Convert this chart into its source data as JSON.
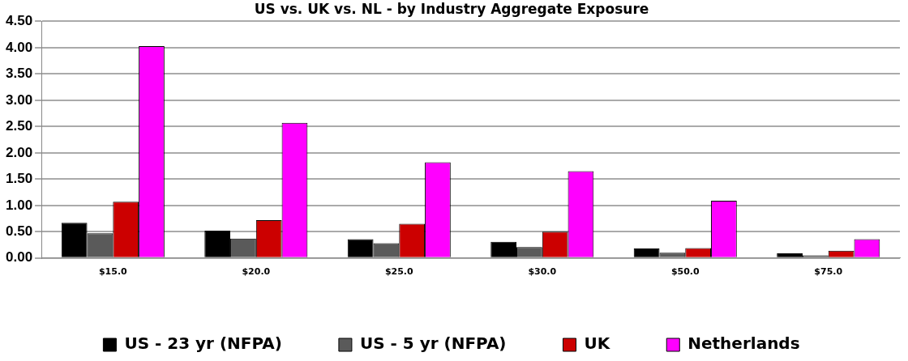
{
  "chart_data": {
    "type": "bar",
    "title": "US vs. UK vs. NL - by Industry Aggregate Exposure",
    "categories": [
      "$15.0",
      "$20.0",
      "$25.0",
      "$30.0",
      "$50.0",
      "$75.0"
    ],
    "series": [
      {
        "name": "US - 23 yr (NFPA)",
        "color": "#000000",
        "values": [
          0.67,
          0.52,
          0.36,
          0.31,
          0.18,
          0.09
        ]
      },
      {
        "name": "US - 5 yr (NFPA)",
        "color": "#5a5a5a",
        "values": [
          0.47,
          0.37,
          0.28,
          0.21,
          0.1,
          0.05
        ]
      },
      {
        "name": "UK",
        "color": "#cc0000",
        "values": [
          1.07,
          0.72,
          0.65,
          0.5,
          0.19,
          0.14
        ]
      },
      {
        "name": "Netherlands",
        "color": "#ff00ff",
        "values": [
          4.03,
          2.57,
          1.82,
          1.65,
          1.09,
          0.36
        ]
      }
    ],
    "ylim": [
      0,
      4.5
    ],
    "yticks": [
      {
        "value": 0,
        "label": "0.00"
      },
      {
        "value": 0.5,
        "label": "0.50"
      },
      {
        "value": 1,
        "label": "1.00"
      },
      {
        "value": 1.5,
        "label": "1.50"
      },
      {
        "value": 2,
        "label": "2.00"
      },
      {
        "value": 2.5,
        "label": "2.50"
      },
      {
        "value": 3,
        "label": "3.00"
      },
      {
        "value": 3.5,
        "label": "3.50"
      },
      {
        "value": 4,
        "label": "4.00"
      },
      {
        "value": 4.5,
        "label": "4.50"
      }
    ],
    "grid": "y",
    "legend": "bottom"
  }
}
